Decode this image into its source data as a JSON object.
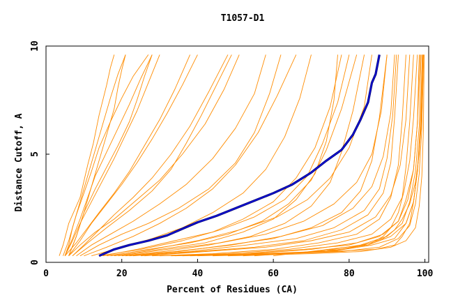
{
  "chart_data": {
    "type": "line",
    "title": "T1057-D1",
    "xlabel": "Percent of Residues (CA)",
    "ylabel": "Distance Cutoff, A",
    "xlim": [
      0,
      101
    ],
    "ylim": [
      0,
      10
    ],
    "x_ticks": [
      "0",
      "20",
      "40",
      "60",
      "80",
      "100"
    ],
    "y_ticks": [
      "0",
      "5",
      "10"
    ],
    "grid": false,
    "colors": {
      "background_models": "#ff8c00",
      "highlight": "#00007f"
    },
    "highlight_series": {
      "x": [
        14,
        18,
        22,
        27,
        32,
        36,
        40,
        45,
        50,
        55,
        60,
        65,
        70,
        74,
        78,
        81,
        83,
        85,
        86,
        87,
        88
      ],
      "y": [
        0.3,
        0.6,
        0.8,
        1.0,
        1.25,
        1.55,
        1.85,
        2.15,
        2.5,
        2.85,
        3.2,
        3.6,
        4.15,
        4.7,
        5.2,
        5.9,
        6.6,
        7.4,
        8.3,
        8.7,
        9.6
      ]
    },
    "background_series": [
      {
        "x": [
          3.5,
          4.5,
          6,
          9,
          11,
          12.5,
          14,
          16,
          17,
          18
        ],
        "y": [
          0.3,
          0.8,
          1.8,
          3.0,
          4.5,
          5.5,
          6.8,
          8.2,
          9.0,
          9.6
        ]
      },
      {
        "x": [
          5,
          6,
          7,
          9,
          11,
          13,
          15,
          17,
          19,
          21
        ],
        "y": [
          0.3,
          0.8,
          1.6,
          2.8,
          4.0,
          5.2,
          6.4,
          7.6,
          8.7,
          9.6
        ]
      },
      {
        "x": [
          4.5,
          6,
          8,
          10,
          12,
          14,
          17,
          20,
          23,
          27
        ],
        "y": [
          0.3,
          1.0,
          2.2,
          3.2,
          4.2,
          5.3,
          6.5,
          7.6,
          8.6,
          9.6
        ]
      },
      {
        "x": [
          5,
          7,
          9,
          12,
          15,
          18,
          21,
          24,
          27,
          30
        ],
        "y": [
          0.3,
          1.0,
          1.8,
          2.8,
          3.8,
          4.8,
          5.9,
          7.0,
          8.3,
          9.6
        ]
      },
      {
        "x": [
          6,
          8,
          10,
          13,
          16,
          19,
          22,
          24,
          26,
          28
        ],
        "y": [
          0.3,
          1.2,
          2.3,
          3.4,
          4.4,
          5.4,
          6.5,
          7.5,
          8.6,
          9.6
        ]
      },
      {
        "x": [
          5,
          8,
          11,
          14,
          18,
          22,
          26,
          30,
          34,
          38
        ],
        "y": [
          0.3,
          0.9,
          1.6,
          2.3,
          3.2,
          4.2,
          5.4,
          6.6,
          8.0,
          9.6
        ]
      },
      {
        "x": [
          6,
          9,
          12,
          16,
          20,
          24,
          28,
          32,
          36,
          40
        ],
        "y": [
          0.3,
          1.0,
          1.8,
          2.7,
          3.6,
          4.6,
          5.7,
          6.9,
          8.2,
          9.6
        ]
      },
      {
        "x": [
          7,
          10,
          14,
          18,
          23,
          28,
          33,
          38,
          43,
          48
        ],
        "y": [
          0.3,
          0.8,
          1.5,
          2.2,
          3.0,
          3.9,
          5.0,
          6.3,
          7.9,
          9.6
        ]
      },
      {
        "x": [
          6,
          9,
          13,
          18,
          24,
          30,
          36,
          42,
          47,
          51
        ],
        "y": [
          0.3,
          0.8,
          1.4,
          2.0,
          2.9,
          3.8,
          5.0,
          6.4,
          8.0,
          9.6
        ]
      },
      {
        "x": [
          8,
          12,
          17,
          23,
          30,
          37,
          44,
          50,
          55,
          58
        ],
        "y": [
          0.3,
          0.8,
          1.3,
          1.9,
          2.7,
          3.6,
          4.8,
          6.2,
          7.8,
          9.6
        ]
      },
      {
        "x": [
          9,
          14,
          20,
          27,
          35,
          43,
          50,
          55,
          59,
          62
        ],
        "y": [
          0.3,
          0.8,
          1.3,
          1.8,
          2.5,
          3.4,
          4.6,
          6.0,
          7.8,
          9.6
        ]
      },
      {
        "x": [
          7,
          11,
          16,
          22,
          28,
          33,
          37,
          41,
          45,
          49
        ],
        "y": [
          0.3,
          0.9,
          1.6,
          2.4,
          3.3,
          4.3,
          5.5,
          6.8,
          8.2,
          9.6
        ]
      },
      {
        "x": [
          6,
          8,
          10,
          12,
          14,
          16,
          18,
          19,
          20,
          21
        ],
        "y": [
          0.3,
          1.2,
          2.3,
          3.5,
          4.7,
          5.9,
          7.1,
          8.1,
          8.9,
          9.6
        ]
      },
      {
        "x": [
          5,
          7,
          9,
          11,
          13,
          16,
          19,
          22,
          25,
          28
        ],
        "y": [
          0.3,
          1.1,
          2.0,
          3.0,
          4.0,
          5.1,
          6.2,
          7.3,
          8.5,
          9.6
        ]
      },
      {
        "x": [
          10,
          16,
          23,
          30,
          37,
          44,
          50,
          56,
          61,
          66
        ],
        "y": [
          0.3,
          0.7,
          1.2,
          1.8,
          2.5,
          3.4,
          4.5,
          6.0,
          7.7,
          9.6
        ]
      },
      {
        "x": [
          12,
          20,
          28,
          36,
          44,
          52,
          58,
          63,
          67,
          70
        ],
        "y": [
          0.3,
          0.7,
          1.1,
          1.6,
          2.3,
          3.2,
          4.3,
          5.8,
          7.6,
          9.6
        ]
      },
      {
        "x": [
          15,
          24,
          34,
          44,
          52,
          60,
          66,
          71,
          75,
          78
        ],
        "y": [
          0.3,
          0.6,
          1.0,
          1.4,
          2.0,
          2.8,
          3.9,
          5.3,
          7.2,
          9.6
        ]
      },
      {
        "x": [
          17,
          27,
          38,
          48,
          57,
          64,
          70,
          74,
          78,
          82
        ],
        "y": [
          0.3,
          0.6,
          0.9,
          1.3,
          1.9,
          2.7,
          3.8,
          5.2,
          7.1,
          9.6
        ]
      },
      {
        "x": [
          14,
          25,
          36,
          46,
          55,
          63,
          69,
          73,
          77,
          80
        ],
        "y": [
          0.3,
          0.6,
          1.0,
          1.5,
          2.1,
          2.9,
          4.0,
          5.5,
          7.4,
          9.6
        ]
      },
      {
        "x": [
          20,
          31,
          43,
          54,
          63,
          70,
          75,
          78,
          81,
          84
        ],
        "y": [
          0.3,
          0.5,
          0.8,
          1.2,
          1.8,
          2.6,
          3.7,
          5.1,
          7.0,
          9.6
        ]
      },
      {
        "x": [
          18,
          30,
          42,
          52,
          60,
          66,
          71,
          74,
          76,
          77
        ],
        "y": [
          0.3,
          0.6,
          0.9,
          1.4,
          2.0,
          2.9,
          4.1,
          5.6,
          7.5,
          9.6
        ]
      },
      {
        "x": [
          22,
          35,
          48,
          60,
          70,
          78,
          83,
          86,
          88,
          90
        ],
        "y": [
          0.3,
          0.5,
          0.8,
          1.1,
          1.6,
          2.3,
          3.3,
          4.7,
          6.7,
          9.6
        ]
      },
      {
        "x": [
          25,
          40,
          55,
          68,
          78,
          85,
          89,
          91,
          92,
          93
        ],
        "y": [
          0.3,
          0.5,
          0.7,
          1.0,
          1.5,
          2.2,
          3.2,
          4.6,
          6.7,
          9.6
        ]
      },
      {
        "x": [
          28,
          44,
          60,
          72,
          82,
          88,
          91,
          93,
          94,
          95
        ],
        "y": [
          0.3,
          0.4,
          0.6,
          0.9,
          1.3,
          2.0,
          3.0,
          4.5,
          6.6,
          9.6
        ]
      },
      {
        "x": [
          30,
          48,
          64,
          77,
          86,
          91,
          94,
          95,
          96,
          97
        ],
        "y": [
          0.3,
          0.4,
          0.6,
          0.9,
          1.3,
          2.0,
          3.0,
          4.4,
          6.5,
          9.6
        ]
      },
      {
        "x": [
          33,
          52,
          68,
          80,
          88,
          93,
          95,
          97,
          98,
          98.5
        ],
        "y": [
          0.3,
          0.4,
          0.6,
          0.8,
          1.2,
          1.9,
          2.9,
          4.3,
          6.4,
          9.6
        ]
      },
      {
        "x": [
          36,
          56,
          72,
          83,
          90,
          94,
          96,
          97.5,
          98.5,
          99
        ],
        "y": [
          0.3,
          0.4,
          0.5,
          0.8,
          1.2,
          1.8,
          2.8,
          4.2,
          6.3,
          9.6
        ]
      },
      {
        "x": [
          40,
          60,
          75,
          86,
          92,
          95,
          97,
          98,
          99,
          99.5
        ],
        "y": [
          0.3,
          0.4,
          0.5,
          0.8,
          1.1,
          1.8,
          2.8,
          4.2,
          6.2,
          9.6
        ]
      },
      {
        "x": [
          26,
          42,
          58,
          70,
          80,
          87,
          91,
          93.5,
          95,
          96
        ],
        "y": [
          0.3,
          0.5,
          0.7,
          1.0,
          1.4,
          2.1,
          3.1,
          4.5,
          6.6,
          9.6
        ]
      },
      {
        "x": [
          23,
          38,
          53,
          66,
          76,
          84,
          88,
          90,
          91.5,
          92.5
        ],
        "y": [
          0.3,
          0.5,
          0.8,
          1.1,
          1.6,
          2.4,
          3.4,
          4.8,
          6.8,
          9.6
        ]
      },
      {
        "x": [
          19,
          32,
          46,
          58,
          68,
          76,
          82,
          86,
          88.5,
          90
        ],
        "y": [
          0.3,
          0.6,
          0.9,
          1.3,
          1.9,
          2.7,
          3.7,
          5.0,
          7.0,
          9.6
        ]
      },
      {
        "x": [
          16,
          28,
          40,
          51,
          61,
          69,
          75,
          80,
          84,
          86
        ],
        "y": [
          0.3,
          0.6,
          1.0,
          1.5,
          2.1,
          2.9,
          3.9,
          5.3,
          7.2,
          9.6
        ]
      },
      {
        "x": [
          44,
          64,
          78,
          88,
          93,
          96,
          97.5,
          98.5,
          99.2,
          99.7
        ],
        "y": [
          0.3,
          0.4,
          0.5,
          0.7,
          1.1,
          1.7,
          2.7,
          4.1,
          6.2,
          9.6
        ]
      },
      {
        "x": [
          48,
          70,
          83,
          91,
          95,
          97.5,
          98.5,
          99.2,
          99.6,
          99.8
        ],
        "y": [
          0.3,
          0.4,
          0.5,
          0.7,
          1.0,
          1.6,
          2.6,
          4.0,
          6.1,
          9.6
        ]
      },
      {
        "x": [
          52,
          75,
          87,
          92,
          94,
          96,
          97,
          98,
          99,
          99.5
        ],
        "y": [
          0.3,
          0.5,
          0.6,
          0.8,
          1.2,
          1.8,
          2.8,
          4.2,
          6.3,
          9.6
        ]
      },
      {
        "x": [
          55,
          78,
          86,
          89,
          91,
          93,
          94.5,
          96,
          97,
          98
        ],
        "y": [
          0.3,
          0.6,
          0.9,
          1.2,
          1.6,
          2.3,
          3.3,
          4.7,
          6.7,
          9.6
        ]
      },
      {
        "x": [
          60,
          84,
          89,
          92,
          94,
          96,
          97.5,
          98.5,
          99,
          99.5
        ],
        "y": [
          0.3,
          0.8,
          1.1,
          1.5,
          2.0,
          2.7,
          3.7,
          5.0,
          7.0,
          9.6
        ]
      },
      {
        "x": [
          34,
          54,
          70,
          82,
          89,
          93,
          95.5,
          97,
          98,
          98.8
        ],
        "y": [
          0.3,
          0.4,
          0.6,
          0.9,
          1.3,
          1.9,
          2.9,
          4.3,
          6.4,
          9.6
        ]
      },
      {
        "x": [
          38,
          58,
          74,
          85,
          91,
          95,
          97,
          98,
          98.8,
          99.3
        ],
        "y": [
          0.3,
          0.4,
          0.5,
          0.8,
          1.2,
          1.8,
          2.8,
          4.2,
          6.3,
          9.6
        ]
      },
      {
        "x": [
          21,
          34,
          49,
          62,
          73,
          81,
          86,
          89,
          91,
          92
        ],
        "y": [
          0.3,
          0.5,
          0.8,
          1.2,
          1.7,
          2.5,
          3.5,
          4.9,
          6.9,
          9.6
        ]
      }
    ]
  }
}
